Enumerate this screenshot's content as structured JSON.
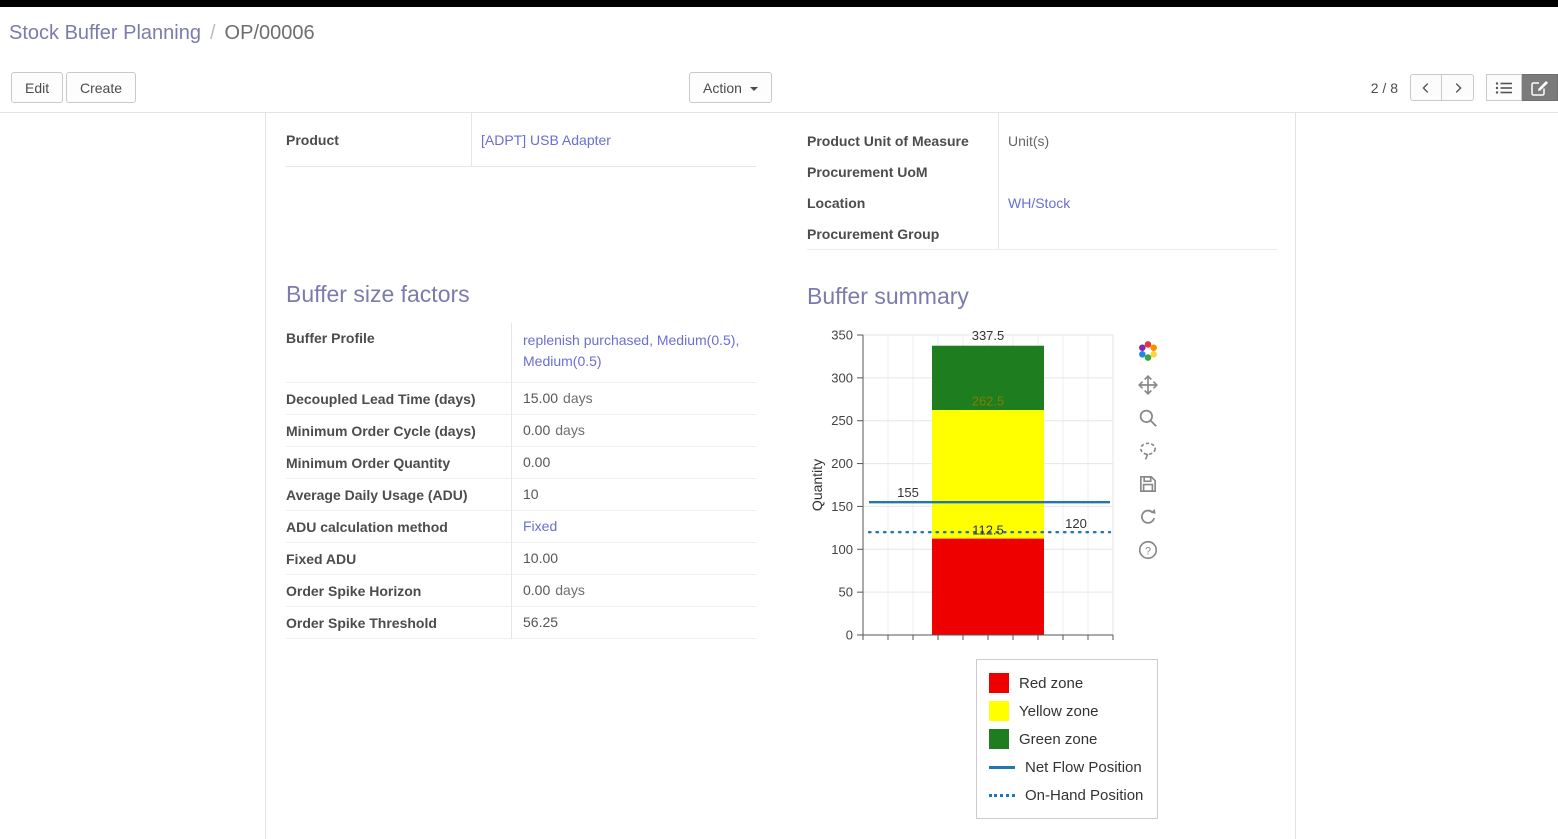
{
  "breadcrumb": {
    "parent": "Stock Buffer Planning",
    "separator": "/",
    "current": "OP/00006"
  },
  "control_panel": {
    "edit_label": "Edit",
    "create_label": "Create",
    "action_label": "Action",
    "pager_value": "2 / 8"
  },
  "form": {
    "product": {
      "label": "Product",
      "value": "[ADPT] USB Adapter"
    },
    "right_fields": [
      {
        "label": "Product Unit of Measure",
        "value": "Unit(s)"
      },
      {
        "label": "Procurement UoM",
        "value": ""
      },
      {
        "label": "Location",
        "value": "WH/Stock"
      },
      {
        "label": "Procurement Group",
        "value": ""
      }
    ],
    "buffer_size_factors": {
      "title": "Buffer size factors",
      "rows": [
        {
          "label": "Buffer Profile",
          "value": "replenish purchased, Medium(0.5), Medium(0.5)"
        },
        {
          "label": "Decoupled Lead Time (days)",
          "value": "15.00",
          "unit": "days"
        },
        {
          "label": "Minimum Order Cycle (days)",
          "value": "0.00",
          "unit": "days"
        },
        {
          "label": "Minimum Order Quantity",
          "value": "0.00"
        },
        {
          "label": "Average Daily Usage (ADU)",
          "value": "10"
        },
        {
          "label": "ADU calculation method",
          "value": "Fixed"
        },
        {
          "label": "Fixed ADU",
          "value": "10.00"
        },
        {
          "label": "Order Spike Horizon",
          "value": "0.00",
          "unit": "days"
        },
        {
          "label": "Order Spike Threshold",
          "value": "56.25"
        }
      ]
    },
    "buffer_summary_title": "Buffer summary"
  },
  "colors": {
    "accent_purple": "#7c7bad",
    "link_blue": "#6a6fd1",
    "topbar_black": "#000000",
    "red_zone": "#ee0000",
    "yellow_zone": "#ffff00",
    "green_zone": "#1e7d1e",
    "flow_line_blue": "#1f77b4"
  },
  "modebar_icons": [
    "plotly-logo",
    "pan",
    "zoom",
    "lasso-select",
    "save-image",
    "reset",
    "help"
  ],
  "chart_data": {
    "type": "bar",
    "title": "Buffer summary",
    "ylabel": "Quantity",
    "xlabel": "",
    "ylim": [
      0,
      350
    ],
    "yticks": [
      0,
      50,
      100,
      150,
      200,
      250,
      300,
      350
    ],
    "grid": true,
    "zones": [
      {
        "name": "Red zone",
        "from": 0,
        "to": 112.5,
        "color": "#ee0000"
      },
      {
        "name": "Yellow zone",
        "from": 112.5,
        "to": 262.5,
        "color": "#ffff00"
      },
      {
        "name": "Green zone",
        "from": 262.5,
        "to": 337.5,
        "color": "#1e7d1e"
      }
    ],
    "lines": [
      {
        "name": "Net Flow Position",
        "value": 155,
        "style": "solid",
        "color": "#1f77b4"
      },
      {
        "name": "On-Hand Position",
        "value": 120,
        "style": "dotted",
        "color": "#1f77b4"
      }
    ],
    "annotations": [
      {
        "text": "337.5",
        "y_value": 344,
        "x": "center",
        "color": "#333333"
      },
      {
        "text": "262.5",
        "y_value": 268,
        "x": "center",
        "color": "#808000"
      },
      {
        "text": "155",
        "y_value": 161,
        "x": "left",
        "color": "#333333"
      },
      {
        "text": "120",
        "y_value": 125,
        "x": "right",
        "color": "#333333"
      },
      {
        "text": "112.5",
        "y_value": 117,
        "x": "center",
        "color": "#333333"
      }
    ],
    "legend_position": "bottom-right",
    "legend": [
      {
        "label": "Red zone",
        "swatch": "box",
        "color": "#ee0000"
      },
      {
        "label": "Yellow zone",
        "swatch": "box",
        "color": "#ffff00"
      },
      {
        "label": "Green zone",
        "swatch": "box",
        "color": "#1e7d1e"
      },
      {
        "label": "Net Flow Position",
        "swatch": "line",
        "color": "#1f77b4"
      },
      {
        "label": "On-Hand Position",
        "swatch": "dotted",
        "color": "#1f77b4"
      }
    ]
  }
}
